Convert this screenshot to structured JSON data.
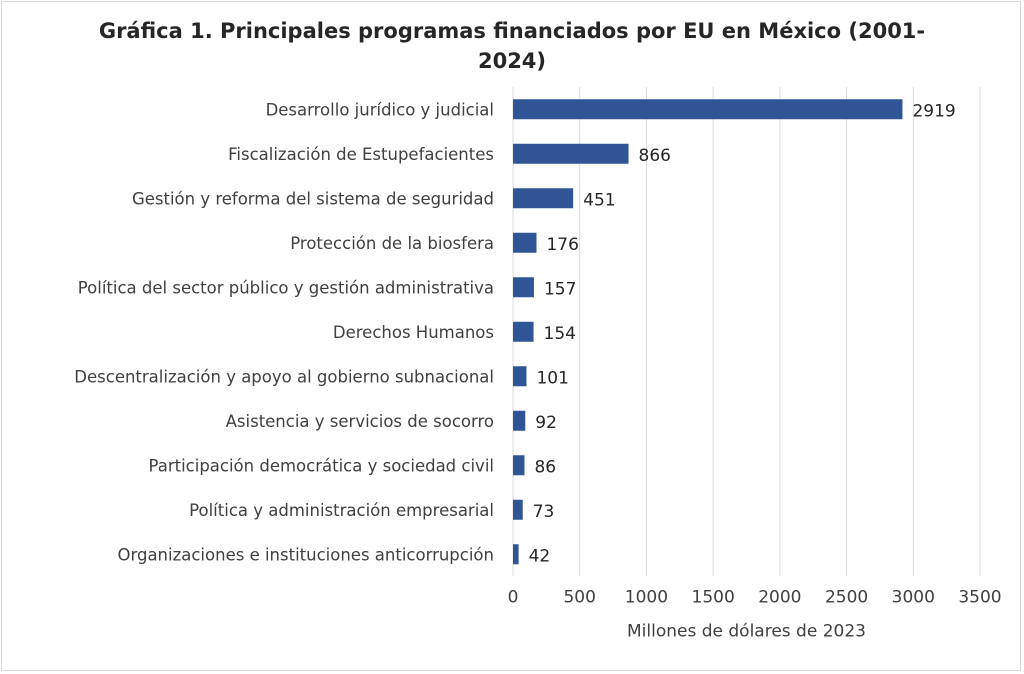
{
  "chart_data": {
    "type": "bar",
    "orientation": "horizontal",
    "title_lines": [
      "Gráfica 1. Principales programas financiados por EU en México (2001-",
      "2024)"
    ],
    "categories": [
      "Desarrollo jurídico y judicial",
      "Fiscalización de Estupefacientes",
      "Gestión y reforma del sistema de seguridad",
      "Protección de la biosfera",
      "Política del sector público y gestión administrativa",
      "Derechos Humanos",
      "Descentralización y apoyo al gobierno subnacional",
      "Asistencia y servicios de socorro",
      "Participación democrática y sociedad civil",
      "Política y administración empresarial",
      "Organizaciones e instituciones anticorrupción"
    ],
    "values": [
      2919,
      866,
      451,
      176,
      157,
      154,
      101,
      92,
      86,
      73,
      42
    ],
    "xlabel": "Millones de dólares de 2023",
    "ylabel": "",
    "xlim": [
      0,
      3500
    ],
    "xticks": [
      0,
      500,
      1000,
      1500,
      2000,
      2500,
      3000,
      3500
    ],
    "grid": "vertical",
    "legend": "none",
    "bar_color": "#2f5597"
  }
}
